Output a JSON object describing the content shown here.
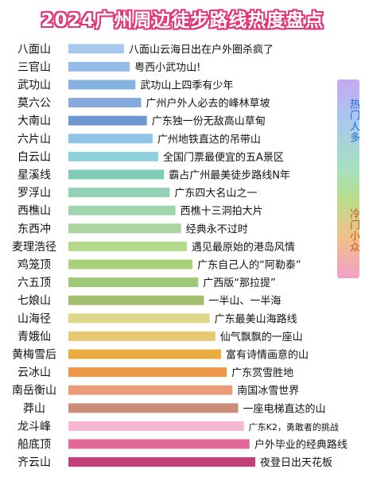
{
  "chart_data": {
    "type": "bar",
    "title": "2024广州周边徒步路线热度盘点",
    "categories": [
      "八面山",
      "三官山",
      "武功山",
      "莫六公",
      "大南山",
      "六片山",
      "白云山",
      "星溪线",
      "罗浮山",
      "西樵山",
      "东西冲",
      "麦理浩径",
      "鸡笼顶",
      "六五顶",
      "七娘山",
      "山海径",
      "青娥仙",
      "黄梅雪后",
      "云冰山",
      "南岳衡山",
      "莽山",
      "龙斗峰",
      "船底顶",
      "齐云山"
    ],
    "descriptions": [
      "八面山云海日出在户外圈杀疯了",
      "粤西小武功山!",
      "武功山上四季有少年",
      "广州户外人必去的峰林草坡",
      "广东独一份无敌高山草甸",
      "广州地铁直达的吊带山",
      "全国门票最便宜的五A景区",
      "霸占广州最美徒步路线N年",
      "广东四大名山之一",
      "西樵十三洞拍大片",
      "经典永不过时",
      "遇见最原始的港岛风情",
      "广东自己人的“阿勒泰”",
      "广西版“那拉提”",
      "一半山、一半海",
      "广东最美山海路线",
      "仙气飘飘的一座山",
      "富有诗情画意的山",
      "广东赏雪胜地",
      "南国冰雪世界",
      "一座电梯直达的山",
      "广东K2，勇敢者的挑战",
      "户外毕业的经典路线",
      "夜登日出天花板"
    ],
    "values": [
      1,
      2,
      3,
      4,
      5,
      6,
      7,
      8,
      9,
      10,
      11,
      12,
      13,
      14,
      15,
      16,
      17,
      18,
      19,
      20,
      21,
      22,
      23,
      24
    ],
    "value_meaning": "rank",
    "colors": [
      "#a8c8ee",
      "#93bce8",
      "#86b2e2",
      "#86aade",
      "#6d98d0",
      "#90c4e8",
      "#8ed0dc",
      "#7fccb8",
      "#93d0b4",
      "#9fd6ae",
      "#a9d69f",
      "#b4d88c",
      "#aad07a",
      "#9fc878",
      "#a4be70",
      "#e0d68a",
      "#e8c870",
      "#e8ac40",
      "#ec9848",
      "#ec9c78",
      "#cc8e78",
      "#f7b6d2",
      "#e4679a",
      "#c4407a"
    ],
    "legend": [
      {
        "label": "热门人多",
        "color": "#a9c8ef"
      },
      {
        "label": "冷门小众",
        "color": "#f0a0c6"
      }
    ],
    "legend_placement": "right",
    "grid": false
  }
}
